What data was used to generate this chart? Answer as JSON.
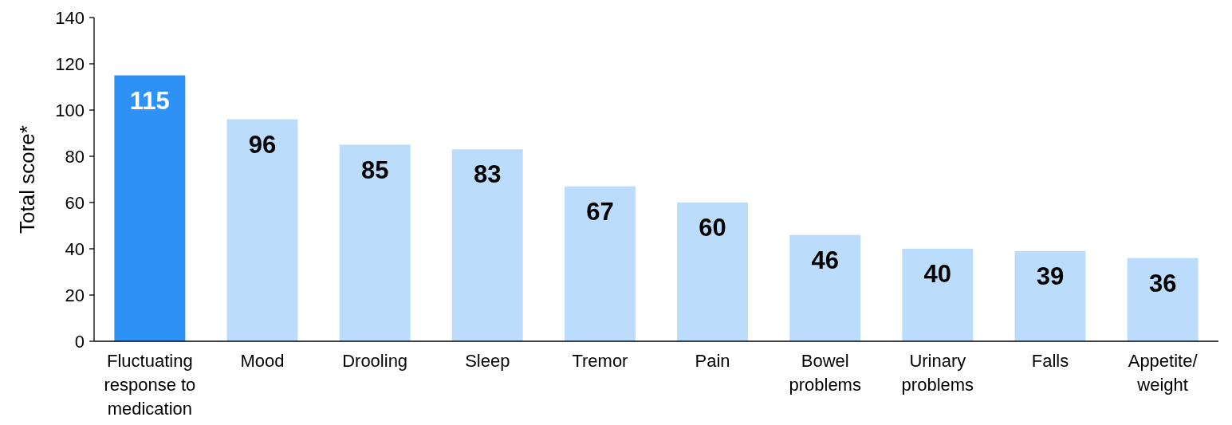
{
  "chart_data": {
    "type": "bar",
    "ylabel": "Total score*",
    "categories": [
      "Fluctuating response to medication",
      "Mood",
      "Drooling",
      "Sleep",
      "Tremor",
      "Pain",
      "Bowel problems",
      "Urinary problems",
      "Falls",
      "Appetite/ weight"
    ],
    "values": [
      115,
      96,
      85,
      83,
      67,
      60,
      46,
      40,
      39,
      36
    ],
    "colors": [
      "#2e91f5",
      "#bbdcfa",
      "#bbdcfa",
      "#bbdcfa",
      "#bbdcfa",
      "#bbdcfa",
      "#bbdcfa",
      "#bbdcfa",
      "#bbdcfa",
      "#bbdcfa"
    ],
    "ylim": [
      0,
      140
    ],
    "yticks": [
      0,
      20,
      40,
      60,
      80,
      100,
      120,
      140
    ],
    "grid": false,
    "data_labels": true
  }
}
